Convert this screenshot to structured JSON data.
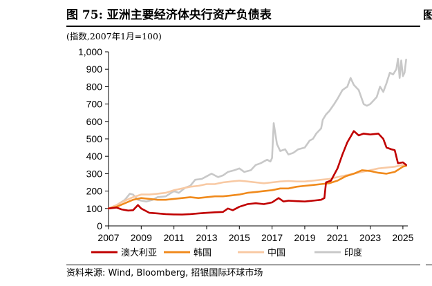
{
  "title": "图 75: 亚洲主要经济体央行资产负债表",
  "unit_note": "(指数,2007年1月=100)",
  "source": "资料来源: Wind, Bloomberg, 招银国际环球市场",
  "edge_glyph": "图",
  "chart_data": {
    "type": "line",
    "title": "图 75: 亚洲主要经济体央行资产负债表",
    "ylabel": "(指数,2007年1月=100)",
    "xlabel": "",
    "xlim": [
      2007,
      2025.3
    ],
    "ylim": [
      0,
      1000
    ],
    "x_ticks": [
      "2007",
      "2009",
      "2011",
      "2013",
      "2015",
      "2017",
      "2019",
      "2021",
      "2023",
      "2025"
    ],
    "y_ticks": [
      "0",
      "100",
      "200",
      "300",
      "400",
      "500",
      "600",
      "700",
      "800",
      "900",
      "1,000"
    ],
    "grid": false,
    "legend_position": "bottom",
    "series": [
      {
        "name": "澳大利亚",
        "color": "#c00000",
        "points": [
          [
            2007.0,
            100
          ],
          [
            2007.5,
            105
          ],
          [
            2007.8,
            95
          ],
          [
            2008.2,
            88
          ],
          [
            2008.5,
            90
          ],
          [
            2008.8,
            120
          ],
          [
            2009.0,
            100
          ],
          [
            2009.5,
            75
          ],
          [
            2010.0,
            72
          ],
          [
            2010.5,
            68
          ],
          [
            2011.0,
            66
          ],
          [
            2011.5,
            65
          ],
          [
            2012.0,
            68
          ],
          [
            2012.5,
            72
          ],
          [
            2013.0,
            75
          ],
          [
            2013.5,
            78
          ],
          [
            2014.0,
            80
          ],
          [
            2014.3,
            100
          ],
          [
            2014.6,
            90
          ],
          [
            2015.0,
            110
          ],
          [
            2015.5,
            125
          ],
          [
            2016.0,
            130
          ],
          [
            2016.5,
            125
          ],
          [
            2017.0,
            135
          ],
          [
            2017.4,
            160
          ],
          [
            2017.7,
            140
          ],
          [
            2018.0,
            145
          ],
          [
            2018.5,
            142
          ],
          [
            2019.0,
            140
          ],
          [
            2019.5,
            145
          ],
          [
            2020.0,
            150
          ],
          [
            2020.2,
            160
          ],
          [
            2020.3,
            250
          ],
          [
            2020.6,
            260
          ],
          [
            2021.0,
            330
          ],
          [
            2021.3,
            410
          ],
          [
            2021.6,
            480
          ],
          [
            2022.0,
            545
          ],
          [
            2022.3,
            520
          ],
          [
            2022.6,
            530
          ],
          [
            2023.0,
            525
          ],
          [
            2023.5,
            530
          ],
          [
            2023.8,
            500
          ],
          [
            2024.0,
            450
          ],
          [
            2024.3,
            440
          ],
          [
            2024.5,
            435
          ],
          [
            2024.7,
            360
          ],
          [
            2025.0,
            365
          ],
          [
            2025.2,
            350
          ]
        ]
      },
      {
        "name": "韩国",
        "color": "#f08a1c",
        "points": [
          [
            2007.0,
            100
          ],
          [
            2007.5,
            110
          ],
          [
            2008.0,
            130
          ],
          [
            2008.5,
            150
          ],
          [
            2009.0,
            160
          ],
          [
            2009.5,
            155
          ],
          [
            2010.0,
            150
          ],
          [
            2010.5,
            150
          ],
          [
            2011.0,
            155
          ],
          [
            2011.5,
            160
          ],
          [
            2012.0,
            165
          ],
          [
            2012.5,
            160
          ],
          [
            2013.0,
            165
          ],
          [
            2013.5,
            170
          ],
          [
            2014.0,
            170
          ],
          [
            2014.5,
            175
          ],
          [
            2015.0,
            180
          ],
          [
            2015.5,
            190
          ],
          [
            2016.0,
            195
          ],
          [
            2016.5,
            200
          ],
          [
            2017.0,
            205
          ],
          [
            2017.5,
            215
          ],
          [
            2018.0,
            215
          ],
          [
            2018.5,
            225
          ],
          [
            2019.0,
            230
          ],
          [
            2019.5,
            235
          ],
          [
            2020.0,
            240
          ],
          [
            2020.5,
            245
          ],
          [
            2021.0,
            260
          ],
          [
            2021.5,
            285
          ],
          [
            2022.0,
            300
          ],
          [
            2022.5,
            320
          ],
          [
            2023.0,
            315
          ],
          [
            2023.5,
            305
          ],
          [
            2024.0,
            300
          ],
          [
            2024.5,
            310
          ],
          [
            2025.0,
            340
          ],
          [
            2025.2,
            345
          ]
        ]
      },
      {
        "name": "中国",
        "color": "#f8c9a3",
        "points": [
          [
            2007.0,
            100
          ],
          [
            2007.5,
            120
          ],
          [
            2008.0,
            145
          ],
          [
            2008.5,
            165
          ],
          [
            2009.0,
            180
          ],
          [
            2009.5,
            180
          ],
          [
            2010.0,
            185
          ],
          [
            2010.5,
            190
          ],
          [
            2011.0,
            205
          ],
          [
            2011.5,
            215
          ],
          [
            2012.0,
            225
          ],
          [
            2012.5,
            230
          ],
          [
            2013.0,
            240
          ],
          [
            2013.5,
            240
          ],
          [
            2014.0,
            250
          ],
          [
            2014.5,
            255
          ],
          [
            2015.0,
            260
          ],
          [
            2015.5,
            255
          ],
          [
            2016.0,
            250
          ],
          [
            2016.5,
            245
          ],
          [
            2017.0,
            250
          ],
          [
            2017.5,
            255
          ],
          [
            2018.0,
            258
          ],
          [
            2018.5,
            255
          ],
          [
            2019.0,
            255
          ],
          [
            2019.5,
            260
          ],
          [
            2020.0,
            265
          ],
          [
            2020.5,
            270
          ],
          [
            2021.0,
            280
          ],
          [
            2021.5,
            290
          ],
          [
            2022.0,
            300
          ],
          [
            2022.5,
            310
          ],
          [
            2023.0,
            320
          ],
          [
            2023.5,
            330
          ],
          [
            2024.0,
            335
          ],
          [
            2024.5,
            340
          ],
          [
            2025.0,
            350
          ],
          [
            2025.2,
            345
          ]
        ]
      },
      {
        "name": "印度",
        "color": "#c8c8c8",
        "points": [
          [
            2007.0,
            100
          ],
          [
            2007.5,
            120
          ],
          [
            2008.0,
            150
          ],
          [
            2008.3,
            185
          ],
          [
            2008.5,
            180
          ],
          [
            2008.8,
            150
          ],
          [
            2009.0,
            145
          ],
          [
            2009.3,
            140
          ],
          [
            2009.7,
            150
          ],
          [
            2010.0,
            165
          ],
          [
            2010.5,
            170
          ],
          [
            2011.0,
            200
          ],
          [
            2011.3,
            190
          ],
          [
            2011.7,
            220
          ],
          [
            2012.0,
            230
          ],
          [
            2012.3,
            265
          ],
          [
            2012.7,
            270
          ],
          [
            2013.0,
            285
          ],
          [
            2013.3,
            300
          ],
          [
            2013.7,
            280
          ],
          [
            2014.0,
            290
          ],
          [
            2014.3,
            310
          ],
          [
            2014.7,
            320
          ],
          [
            2015.0,
            330
          ],
          [
            2015.3,
            310
          ],
          [
            2015.7,
            320
          ],
          [
            2016.0,
            350
          ],
          [
            2016.3,
            360
          ],
          [
            2016.7,
            380
          ],
          [
            2016.9,
            370
          ],
          [
            2017.0,
            390
          ],
          [
            2017.1,
            590
          ],
          [
            2017.3,
            470
          ],
          [
            2017.5,
            430
          ],
          [
            2017.8,
            440
          ],
          [
            2018.0,
            410
          ],
          [
            2018.3,
            420
          ],
          [
            2018.6,
            440
          ],
          [
            2019.0,
            450
          ],
          [
            2019.3,
            490
          ],
          [
            2019.5,
            500
          ],
          [
            2019.7,
            530
          ],
          [
            2020.0,
            560
          ],
          [
            2020.1,
            610
          ],
          [
            2020.3,
            640
          ],
          [
            2020.5,
            660
          ],
          [
            2020.8,
            700
          ],
          [
            2021.0,
            730
          ],
          [
            2021.3,
            780
          ],
          [
            2021.6,
            800
          ],
          [
            2021.8,
            850
          ],
          [
            2022.0,
            810
          ],
          [
            2022.3,
            780
          ],
          [
            2022.6,
            700
          ],
          [
            2022.8,
            690
          ],
          [
            2023.0,
            700
          ],
          [
            2023.2,
            720
          ],
          [
            2023.4,
            740
          ],
          [
            2023.6,
            800
          ],
          [
            2023.8,
            770
          ],
          [
            2024.0,
            820
          ],
          [
            2024.2,
            880
          ],
          [
            2024.4,
            870
          ],
          [
            2024.6,
            900
          ],
          [
            2024.7,
            960
          ],
          [
            2024.8,
            850
          ],
          [
            2024.9,
            950
          ],
          [
            2025.0,
            860
          ],
          [
            2025.1,
            880
          ],
          [
            2025.2,
            955
          ]
        ]
      }
    ]
  }
}
